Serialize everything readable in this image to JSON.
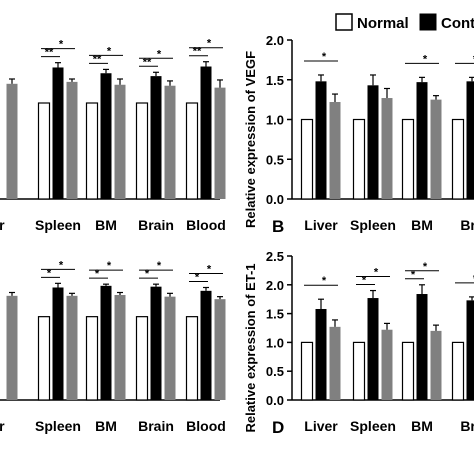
{
  "legend": {
    "entries": [
      "Normal",
      "Cont"
    ],
    "placement": "top-right"
  },
  "chart_data": [
    {
      "type": "bar",
      "panel": "A",
      "panel_label": "",
      "title": "",
      "ylabel": "",
      "ylim": [
        0,
        1.5
      ],
      "yticks": [],
      "categories": [
        "er",
        "Spleen",
        "BM",
        "Brain",
        "Blood"
      ],
      "series": [
        {
          "name": "Normal",
          "values": [
            1.0,
            1.0,
            1.0,
            1.0,
            1.0
          ],
          "errors": [
            0,
            0,
            0,
            0,
            0
          ]
        },
        {
          "name": "Cont",
          "values": [
            null,
            1.37,
            1.31,
            1.28,
            1.38
          ],
          "errors": [
            0,
            0.05,
            0.04,
            0.04,
            0.05
          ]
        },
        {
          "name": "",
          "values": [
            1.2,
            1.22,
            1.19,
            1.18,
            1.16
          ],
          "errors": [
            0.05,
            0.03,
            0.06,
            0.05,
            0.08
          ]
        }
      ],
      "annotations": [
        {
          "category": "Spleen",
          "top": "*",
          "bottom": "**"
        },
        {
          "category": "BM",
          "top": "*",
          "bottom": "**"
        },
        {
          "category": "Brain",
          "top": "*",
          "bottom": "**"
        },
        {
          "category": "Blood",
          "top": "*",
          "bottom": "**"
        }
      ]
    },
    {
      "type": "bar",
      "panel": "B",
      "panel_label": "B",
      "title": "",
      "ylabel": "Relative expression of VEGF",
      "ylim": [
        0,
        2.0
      ],
      "yticks": [
        "0.0",
        "0.5",
        "1.0",
        "1.5",
        "2.0"
      ],
      "categories": [
        "Liver",
        "Spleen",
        "BM",
        "Bra"
      ],
      "series": [
        {
          "name": "Normal",
          "values": [
            1.0,
            1.0,
            1.0,
            1.0
          ],
          "errors": [
            0,
            0,
            0,
            0
          ]
        },
        {
          "name": "Cont",
          "values": [
            1.48,
            1.43,
            1.47,
            1.48
          ],
          "errors": [
            0.08,
            0.13,
            0.06,
            0.05
          ]
        },
        {
          "name": "",
          "values": [
            1.22,
            1.27,
            1.25,
            null
          ],
          "errors": [
            0.1,
            0.12,
            0.05,
            0
          ]
        }
      ],
      "annotations": [
        {
          "category": "Liver",
          "top": "*",
          "bottom": ""
        },
        {
          "category": "BM",
          "top": "*",
          "bottom": ""
        },
        {
          "category": "Bra",
          "top": "*",
          "bottom": ""
        }
      ]
    },
    {
      "type": "bar",
      "panel": "C",
      "panel_label": "",
      "title": "",
      "ylabel": "",
      "ylim": [
        0,
        1.5
      ],
      "yticks": [],
      "categories": [
        "er",
        "Spleen",
        "BM",
        "Brain",
        "Blood"
      ],
      "series": [
        {
          "name": "Normal",
          "values": [
            1.0,
            1.0,
            1.0,
            1.0,
            1.0
          ],
          "errors": [
            0,
            0,
            0,
            0,
            0
          ]
        },
        {
          "name": "Cont",
          "values": [
            null,
            1.35,
            1.37,
            1.36,
            1.31
          ],
          "errors": [
            0,
            0.05,
            0.02,
            0.03,
            0.04
          ]
        },
        {
          "name": "",
          "values": [
            1.25,
            1.25,
            1.26,
            1.24,
            1.21
          ],
          "errors": [
            0.04,
            0.03,
            0.03,
            0.04,
            0.03
          ]
        }
      ],
      "annotations": [
        {
          "category": "Spleen",
          "top": "*",
          "bottom": "*"
        },
        {
          "category": "BM",
          "top": "*",
          "bottom": "*"
        },
        {
          "category": "Brain",
          "top": "*",
          "bottom": "*"
        },
        {
          "category": "Blood",
          "top": "*",
          "bottom": "*"
        }
      ]
    },
    {
      "type": "bar",
      "panel": "D",
      "panel_label": "D",
      "title": "",
      "ylabel": "Relative expression of ET-1",
      "ylim": [
        0,
        2.5
      ],
      "yticks": [
        "0.0",
        "0.5",
        "1.0",
        "1.5",
        "2.0",
        "2.5"
      ],
      "categories": [
        "Liver",
        "Spleen",
        "BM",
        "Bra"
      ],
      "series": [
        {
          "name": "Normal",
          "values": [
            1.0,
            1.0,
            1.0,
            1.0
          ],
          "errors": [
            0,
            0,
            0,
            0
          ]
        },
        {
          "name": "Cont",
          "values": [
            1.58,
            1.77,
            1.84,
            1.73
          ],
          "errors": [
            0.17,
            0.13,
            0.16,
            0.06
          ]
        },
        {
          "name": "",
          "values": [
            1.27,
            1.22,
            1.2,
            null
          ],
          "errors": [
            0.12,
            0.11,
            0.1,
            0
          ]
        }
      ],
      "annotations": [
        {
          "category": "Liver",
          "top": "*",
          "bottom": ""
        },
        {
          "category": "Spleen",
          "top": "*",
          "bottom": "*"
        },
        {
          "category": "BM",
          "top": "*",
          "bottom": "*"
        },
        {
          "category": "Bra",
          "top": "*",
          "bottom": ""
        }
      ]
    }
  ],
  "colors": {
    "normal": "#ffffff",
    "cont": "#000000",
    "third": "#808080",
    "axis": "#000000"
  }
}
